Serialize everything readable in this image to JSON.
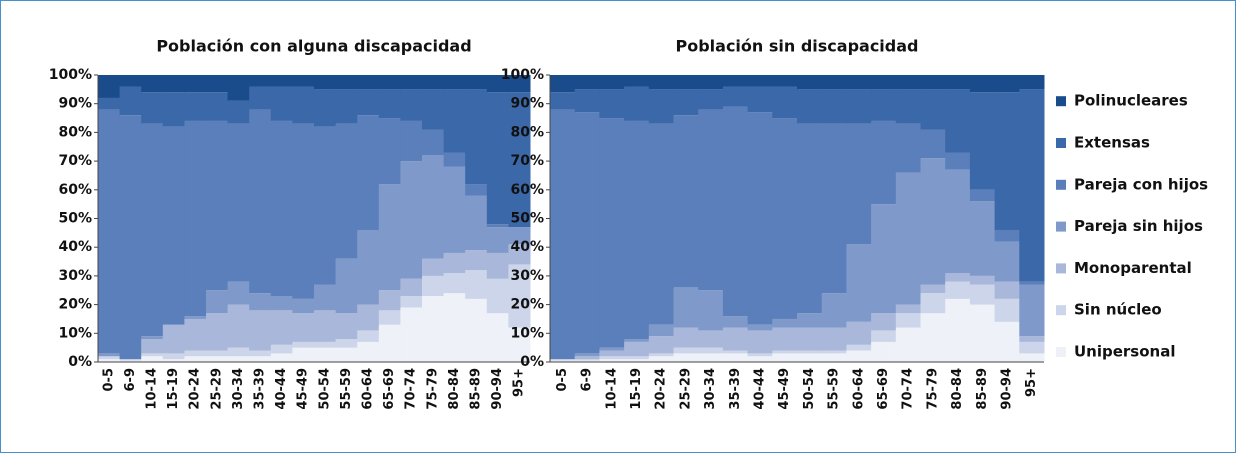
{
  "legend": {
    "position": "right",
    "items": [
      {
        "name": "Unipersonal",
        "color": "#eef1f8"
      },
      {
        "name": "Sin núcleo",
        "color": "#ccd5e9"
      },
      {
        "name": "Monoparental",
        "color": "#a9b8da"
      },
      {
        "name": "Pareja sin hijos",
        "color": "#7f9aca"
      },
      {
        "name": "Pareja con hijos",
        "color": "#5b7fbb"
      },
      {
        "name": "Extensas",
        "color": "#3b68a8"
      },
      {
        "name": "Polinucleares",
        "color": "#1a4c8c"
      }
    ]
  },
  "chart_data": [
    {
      "type": "stacked_step_area",
      "title": "Población con alguna discapacidad",
      "categories": [
        "0-5",
        "6-9",
        "10-14",
        "15-19",
        "20-24",
        "25-29",
        "30-34",
        "35-39",
        "40-44",
        "45-49",
        "50-54",
        "55-59",
        "60-64",
        "65-69",
        "70-74",
        "75-79",
        "80-84",
        "85-89",
        "90-94",
        "95+"
      ],
      "ylim": [
        0,
        100
      ],
      "yticks": [
        {
          "value": 0,
          "label": "0%"
        },
        {
          "value": 10,
          "label": "10%"
        },
        {
          "value": 20,
          "label": "20%"
        },
        {
          "value": 30,
          "label": "30%"
        },
        {
          "value": 40,
          "label": "40%"
        },
        {
          "value": 50,
          "label": "50%"
        },
        {
          "value": 60,
          "label": "60%"
        },
        {
          "value": 70,
          "label": "70%"
        },
        {
          "value": 80,
          "label": "80%"
        },
        {
          "value": 90,
          "label": "90%"
        },
        {
          "value": 100,
          "label": "100%"
        }
      ],
      "series": [
        {
          "values": [
            1,
            0.5,
            2,
            1,
            2,
            2,
            2,
            2,
            3,
            5,
            5,
            5,
            7,
            13,
            19,
            23,
            24,
            22,
            17,
            12
          ]
        },
        {
          "values": [
            1,
            0.5,
            1,
            2,
            2,
            2,
            3,
            2,
            3,
            2,
            2,
            3,
            4,
            5,
            4,
            7,
            7,
            10,
            12,
            22
          ]
        },
        {
          "values": [
            0,
            0,
            5,
            10,
            11,
            13,
            15,
            14,
            12,
            10,
            11,
            9,
            9,
            7,
            6,
            6,
            7,
            7,
            9,
            7
          ]
        },
        {
          "values": [
            1,
            0,
            1,
            0,
            1,
            8,
            8,
            6,
            5,
            5,
            9,
            19,
            26,
            37,
            41,
            36,
            30,
            19,
            9,
            6
          ]
        },
        {
          "values": [
            85,
            85,
            74,
            69,
            68,
            59,
            55,
            64,
            61,
            61,
            55,
            47,
            40,
            23,
            14,
            9,
            5,
            4,
            1,
            0
          ]
        },
        {
          "values": [
            4,
            10,
            11,
            12,
            10,
            10,
            8,
            8,
            12,
            13,
            13,
            12,
            9,
            10,
            11,
            14,
            22,
            33,
            46,
            47
          ]
        },
        {
          "values": [
            8,
            4,
            6,
            6,
            6,
            6,
            9,
            4,
            4,
            4,
            5,
            5,
            5,
            5,
            5,
            5,
            5,
            5,
            6,
            6
          ]
        }
      ]
    },
    {
      "type": "stacked_step_area",
      "title": "Población sin discapacidad",
      "categories": [
        "0-5",
        "6-9",
        "10-14",
        "15-19",
        "20-24",
        "25-29",
        "30-34",
        "35-39",
        "40-44",
        "45-49",
        "50-54",
        "55-59",
        "60-64",
        "65-69",
        "70-74",
        "75-79",
        "80-84",
        "85-89",
        "90-94",
        "95+"
      ],
      "ylim": [
        0,
        100
      ],
      "yticks": [
        {
          "value": 0,
          "label": "0%"
        },
        {
          "value": 10,
          "label": "10%"
        },
        {
          "value": 20,
          "label": "20%"
        },
        {
          "value": 30,
          "label": "30%"
        },
        {
          "value": 40,
          "label": "40%"
        },
        {
          "value": 50,
          "label": "50%"
        },
        {
          "value": 60,
          "label": "60%"
        },
        {
          "value": 70,
          "label": "70%"
        },
        {
          "value": 80,
          "label": "80%"
        },
        {
          "value": 90,
          "label": "90%"
        },
        {
          "value": 100,
          "label": "100%"
        }
      ],
      "series": [
        {
          "values": [
            0.5,
            0.5,
            1,
            1,
            2,
            3,
            3,
            3,
            2,
            3,
            3,
            3,
            4,
            7,
            12,
            17,
            22,
            20,
            14,
            3
          ]
        },
        {
          "values": [
            0.5,
            0.5,
            1,
            1,
            1,
            2,
            2,
            1,
            1,
            1,
            1,
            1,
            2,
            4,
            5,
            7,
            6,
            7,
            8,
            4
          ]
        },
        {
          "values": [
            0,
            1,
            2,
            5,
            6,
            7,
            6,
            8,
            8,
            8,
            8,
            8,
            8,
            6,
            3,
            3,
            3,
            3,
            6,
            2
          ]
        },
        {
          "values": [
            0,
            1,
            1,
            1,
            4,
            14,
            14,
            4,
            2,
            3,
            5,
            12,
            27,
            38,
            46,
            44,
            36,
            26,
            14,
            18
          ]
        },
        {
          "values": [
            87,
            84,
            80,
            76,
            70,
            60,
            63,
            73,
            74,
            70,
            66,
            59,
            42,
            29,
            17,
            10,
            6,
            4,
            4,
            1
          ]
        },
        {
          "values": [
            6,
            8,
            10,
            12,
            12,
            9,
            7,
            7,
            9,
            11,
            12,
            12,
            12,
            11,
            12,
            14,
            22,
            34,
            48,
            67
          ]
        },
        {
          "values": [
            6,
            5,
            5,
            4,
            5,
            5,
            5,
            4,
            4,
            4,
            5,
            5,
            5,
            5,
            5,
            5,
            5,
            6,
            6,
            5
          ]
        }
      ]
    }
  ]
}
